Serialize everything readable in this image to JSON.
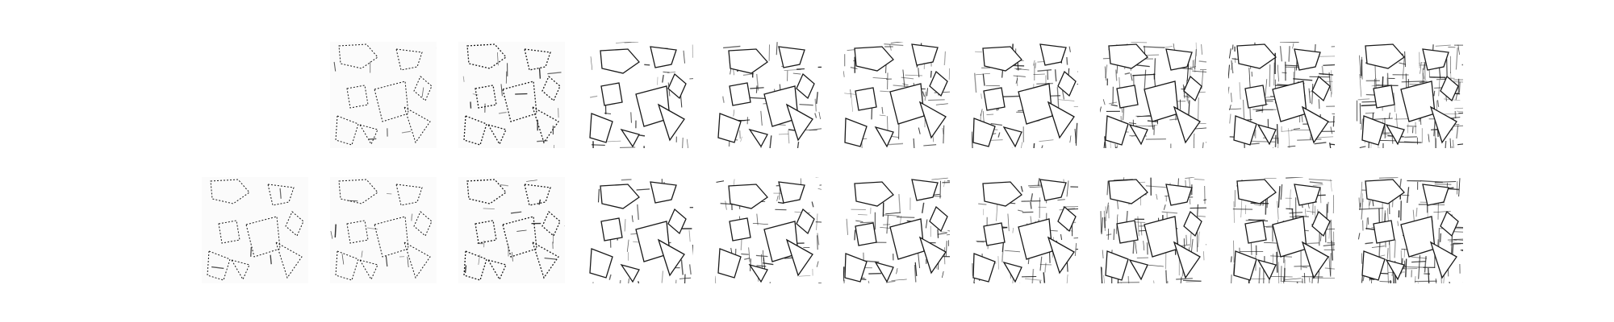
{
  "figure": {
    "rows": 2,
    "columns": 10,
    "top_row_first_cell_empty": true,
    "style": "grayscale line drawings of polygon outlines with progressively denser edge hatching",
    "top_row": [
      {
        "stage": 1,
        "present": false,
        "density": 0
      },
      {
        "stage": 2,
        "present": true,
        "density": 0.05
      },
      {
        "stage": 3,
        "present": true,
        "density": 0.12
      },
      {
        "stage": 4,
        "present": true,
        "density": 0.25
      },
      {
        "stage": 5,
        "present": true,
        "density": 0.38
      },
      {
        "stage": 6,
        "present": true,
        "density": 0.5
      },
      {
        "stage": 7,
        "present": true,
        "density": 0.62
      },
      {
        "stage": 8,
        "present": true,
        "density": 0.74
      },
      {
        "stage": 9,
        "present": true,
        "density": 0.86
      },
      {
        "stage": 10,
        "present": true,
        "density": 1.0
      }
    ],
    "bottom_row": [
      {
        "stage": 1,
        "present": true,
        "density": 0.03
      },
      {
        "stage": 2,
        "present": true,
        "density": 0.08
      },
      {
        "stage": 3,
        "present": true,
        "density": 0.12
      },
      {
        "stage": 4,
        "present": true,
        "density": 0.25
      },
      {
        "stage": 5,
        "present": true,
        "density": 0.38
      },
      {
        "stage": 6,
        "present": true,
        "density": 0.5
      },
      {
        "stage": 7,
        "present": true,
        "density": 0.62
      },
      {
        "stage": 8,
        "present": true,
        "density": 0.74
      },
      {
        "stage": 9,
        "present": true,
        "density": 0.86
      },
      {
        "stage": 10,
        "present": true,
        "density": 1.0
      }
    ]
  }
}
